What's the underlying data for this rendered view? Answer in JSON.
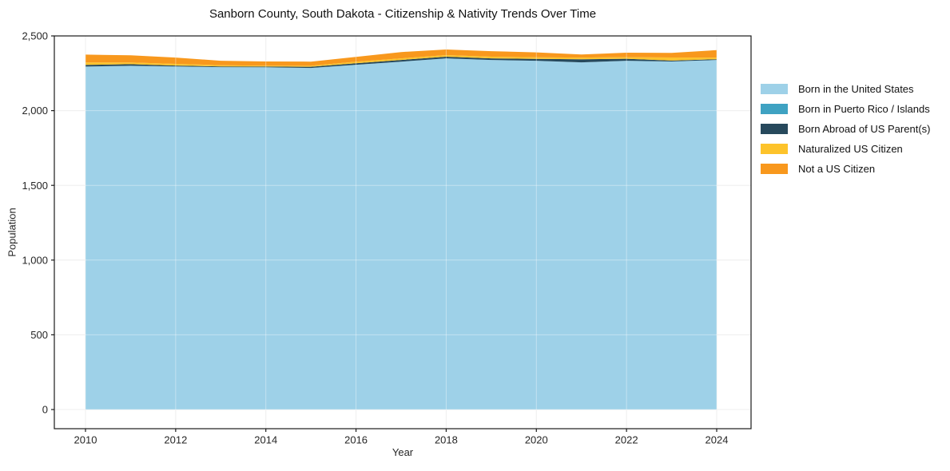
{
  "chart_data": {
    "type": "area",
    "stacked": true,
    "title": "Sanborn County, South Dakota - Citizenship & Nativity Trends Over Time",
    "xlabel": "Year",
    "ylabel": "Population",
    "x": [
      2010,
      2011,
      2012,
      2013,
      2014,
      2015,
      2016,
      2017,
      2018,
      2019,
      2020,
      2021,
      2022,
      2023,
      2024
    ],
    "xtick_values": [
      2010,
      2012,
      2014,
      2016,
      2018,
      2020,
      2022,
      2024
    ],
    "xtick_labels": [
      "2010",
      "2012",
      "2014",
      "2016",
      "2018",
      "2020",
      "2022",
      "2024"
    ],
    "ytick_values": [
      0,
      500,
      1000,
      1500,
      2000,
      2500
    ],
    "ytick_labels": [
      "0",
      "500",
      "1,000",
      "1,500",
      "2,000",
      "2,500"
    ],
    "ylim": [
      0,
      2500
    ],
    "grid": true,
    "legend_position": "right",
    "series": [
      {
        "name": "Born in the United States",
        "color": "#9ed1e8",
        "values": [
          2295,
          2300,
          2296,
          2291,
          2290,
          2286,
          2307,
          2328,
          2350,
          2339,
          2334,
          2323,
          2334,
          2329,
          2339
        ]
      },
      {
        "name": "Born in Puerto Rico / Islands",
        "color": "#3fa2c2",
        "values": [
          0,
          0,
          0,
          0,
          0,
          0,
          0,
          0,
          0,
          0,
          0,
          0,
          0,
          0,
          0
        ]
      },
      {
        "name": "Born Abroad of US Parent(s)",
        "color": "#27495c",
        "values": [
          11,
          11,
          6,
          5,
          5,
          8,
          10,
          11,
          11,
          11,
          12,
          21,
          13,
          6,
          5
        ]
      },
      {
        "name": "Naturalized US Citizen",
        "color": "#fdc32b",
        "values": [
          16,
          11,
          11,
          8,
          6,
          6,
          11,
          11,
          11,
          11,
          11,
          11,
          11,
          21,
          11
        ]
      },
      {
        "name": "Not a US Citizen",
        "color": "#f8981d",
        "values": [
          53,
          48,
          42,
          30,
          28,
          28,
          32,
          42,
          37,
          37,
          33,
          21,
          30,
          30,
          50
        ]
      }
    ]
  }
}
